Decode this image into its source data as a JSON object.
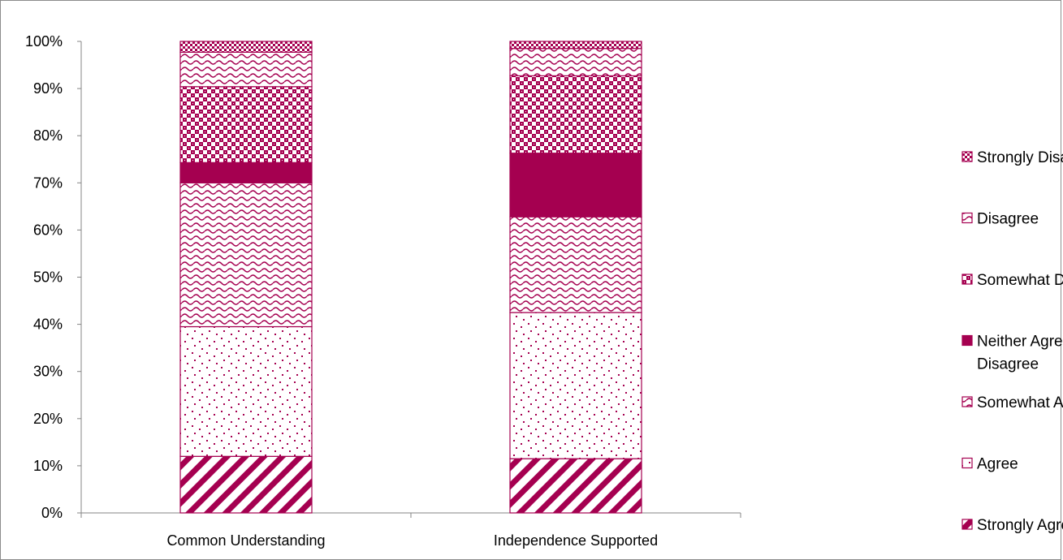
{
  "chart_data": {
    "type": "bar",
    "stacked": true,
    "percent": true,
    "categories": [
      "Common Understanding",
      "Independence Supported"
    ],
    "series": [
      {
        "name": "Strongly Agree",
        "values": [
          12,
          11.5
        ],
        "pattern": "diag-stripes"
      },
      {
        "name": "Agree",
        "values": [
          27.5,
          31
        ],
        "pattern": "dots"
      },
      {
        "name": "Somewhat Agree",
        "values": [
          30.5,
          20.3
        ],
        "pattern": "waves"
      },
      {
        "name": "Neither Agree nor Disagree",
        "values": [
          4.3,
          13.5
        ],
        "pattern": "solid"
      },
      {
        "name": "Somewhat Disagree",
        "values": [
          16.1,
          16.4
        ],
        "pattern": "checker"
      },
      {
        "name": "Disagree",
        "values": [
          7.3,
          5.8
        ],
        "pattern": "waves"
      },
      {
        "name": "Strongly Disagree",
        "values": [
          2.3,
          1.5
        ],
        "pattern": "checker-fine"
      }
    ],
    "ylim": [
      0,
      100
    ],
    "yticks": [
      "0%",
      "10%",
      "20%",
      "30%",
      "40%",
      "50%",
      "60%",
      "70%",
      "80%",
      "90%",
      "100%"
    ],
    "grid": false,
    "legend": "right",
    "colors": {
      "accent": "#a50050",
      "light": "#ffffff",
      "axis": "#868686",
      "frame": "#8c8c8c"
    }
  }
}
